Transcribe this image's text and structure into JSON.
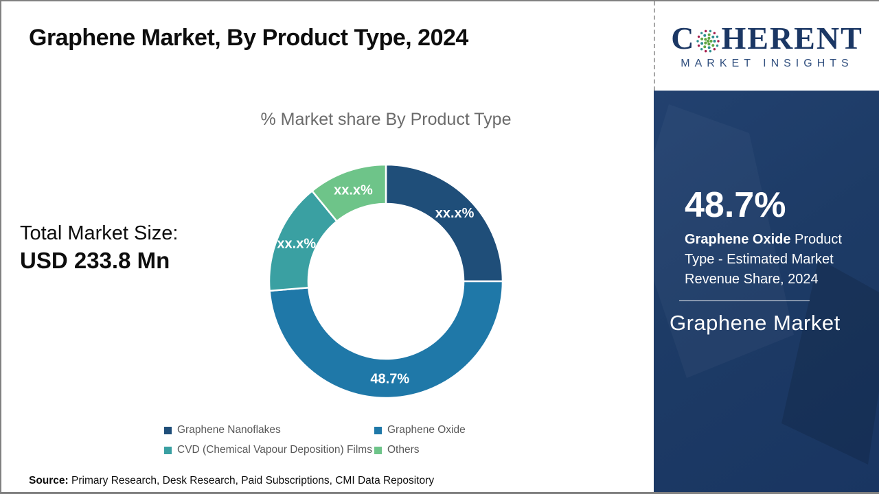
{
  "page": {
    "title": "Graphene Market, By Product Type, 2024",
    "source_label": "Source:",
    "source_text": " Primary Research, Desk Research, Paid Subscriptions, CMI Data Repository"
  },
  "logo": {
    "brand_first_letter": "C",
    "brand_rest": "HERENT",
    "tagline": "MARKET INSIGHTS",
    "brand_color": "#1b3764",
    "globe_dot_colors": [
      "#a61e4d",
      "#2e8f8f",
      "#62a744"
    ]
  },
  "left_panel": {
    "total_label": "Total Market Size:",
    "total_value": "USD 233.8 Mn"
  },
  "sidebar": {
    "stat_value": "48.7%",
    "desc_bold": "Graphene Oxide",
    "desc_rest": " Product Type - Estimated Market Revenue Share, 2024",
    "market_name": "Graphene Market",
    "background_color": "#1d3b66"
  },
  "chart_data": {
    "type": "pie",
    "subtype": "donut",
    "title": "% Market share By Product Type",
    "start_angle_deg": 0,
    "direction": "clockwise",
    "inner_radius_ratio": 0.665,
    "legend_position": "bottom",
    "series": [
      {
        "name": "Graphene Nanoflakes",
        "value_pct": 25.0,
        "display_label": "xx.x%",
        "color": "#1f4e79"
      },
      {
        "name": "Graphene Oxide",
        "value_pct": 48.7,
        "display_label": "48.7%",
        "color": "#1f78a8"
      },
      {
        "name": "CVD (Chemical Vapour Deposition) Films",
        "value_pct": 15.4,
        "display_label": "xx.x%",
        "color": "#3aa0a2"
      },
      {
        "name": "Others",
        "value_pct": 10.9,
        "display_label": "xx.x%",
        "color": "#6ec489"
      }
    ]
  }
}
